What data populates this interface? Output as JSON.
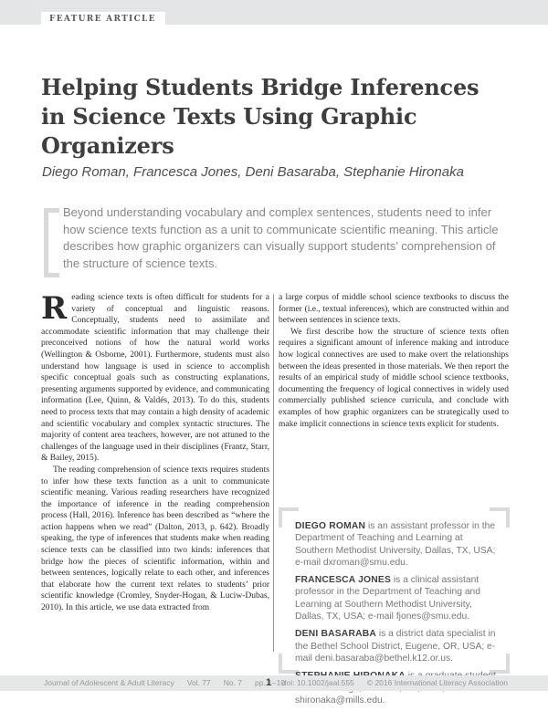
{
  "header": {
    "feature_label": "FEATURE ARTICLE",
    "title_lines": [
      "Helping Students Bridge Inferences",
      "in Science Texts Using Graphic",
      "Organizers"
    ],
    "authors": "Diego Roman, Francesca Jones, Deni Basaraba, Stephanie Hironaka",
    "abstract": "Beyond understanding vocabulary and complex sentences, students need to infer how science texts function as a unit to communicate scientific meaning. This article describes how graphic organizers can visually support students’ comprehension of the structure of science texts."
  },
  "body": {
    "left_column": {
      "drop_cap": "R",
      "para1_rest": "eading science texts is often difficult for students for a variety of conceptual and linguistic reasons. Conceptually, students need to assimilate and accommodate scientific information that may challenge their preconceived notions of how the natural world works (Wellington & Osborne, 2001). Furthermore, students must also understand how language is used in science to accomplish specific conceptual goals such as constructing explanations, presenting arguments supported by evidence, and communicating information (Lee, Quinn, & Valdés, 2013). To do this, students need to process texts that may contain a high density of academic and scientific vocabulary and complex syntactic structures. The majority of content area teachers, however, are not attuned to the challenges of the language used in their disciplines (Frantz, Starr, & Bailey, 2015).",
      "para2": "The reading comprehension of science texts requires students to infer how these texts function as a unit to communicate scientific meaning. Various reading researchers have recognized the importance of inference in the reading comprehension process (Hall, 2016). Inference has been described as “where the action happens when we read” (Dalton, 2013, p. 642). Broadly speaking, the type of inferences that students make when reading science texts can be classified into two kinds: inferences that bridge how the pieces of scientific information, within and between sentences, logically relate to each other, and inferences that elaborate how the current text relates to students’ prior scientific knowledge (Cromley, Snyder-Hogan, & Luciw-Dubas, 2010). In this article, we use data extracted from"
    },
    "right_column": {
      "para1": "a large corpus of middle school science textbooks to discuss the former (i.e., textual inferences), which are constructed within and between sentences in science texts.",
      "para2": "We first describe how the structure of science texts often requires a significant amount of inference making and introduce how logical connectives are used to make overt the relationships between the ideas presented in those materials. We then report the results of an empirical study of middle school science textbooks, documenting the frequency of logical connectives in widely used commercially published science curricula, and conclude with examples of how graphic organizers can be strategically used to make implicit connections in science texts explicit for students."
    }
  },
  "author_box": {
    "entries": [
      {
        "name": "DIEGO ROMAN",
        "text": " is an assistant professor in the Department of Teaching and Learning at Southern Methodist University, Dallas, TX, USA; e-mail dxroman@smu.edu."
      },
      {
        "name": "FRANCESCA JONES",
        "text": " is a clinical assistant professor in the Department of Teaching and Learning at Southern Methodist University, Dallas, TX, USA; e-mail fjones@smu.edu."
      },
      {
        "name": "DENI BASARABA",
        "text": " is a district data specialist in the Bethel School District, Eugene, OR, USA; e-mail deni.basaraba@bethel.k12.or.us."
      },
      {
        "name": "STEPHANIE HIRONAKA",
        "text": " is a graduate student at Mills College, Oakland, CA, USA; e-mail shironaka@mills.edu."
      }
    ]
  },
  "footer": {
    "journal": "Journal of Adolescent & Adult Literacy",
    "volume": "Vol. 77",
    "number": "No. 7",
    "pages": "pp. 1–10",
    "page_number": "1",
    "doi": "doi: 10.1002/jaal.555",
    "copyright": "© 2016 International Literacy Association"
  },
  "colors": {
    "top_band": "#e4e5e7",
    "title_text": "#3e3e40",
    "abstract_text": "#85878a",
    "abstract_bracket": "#d8d9db",
    "body_text": "#2b2b2d",
    "column_divider": "#98999b",
    "box_corner": "#dadbdd",
    "footer_band": "#e6e7e9",
    "footer_text": "#97989b"
  }
}
